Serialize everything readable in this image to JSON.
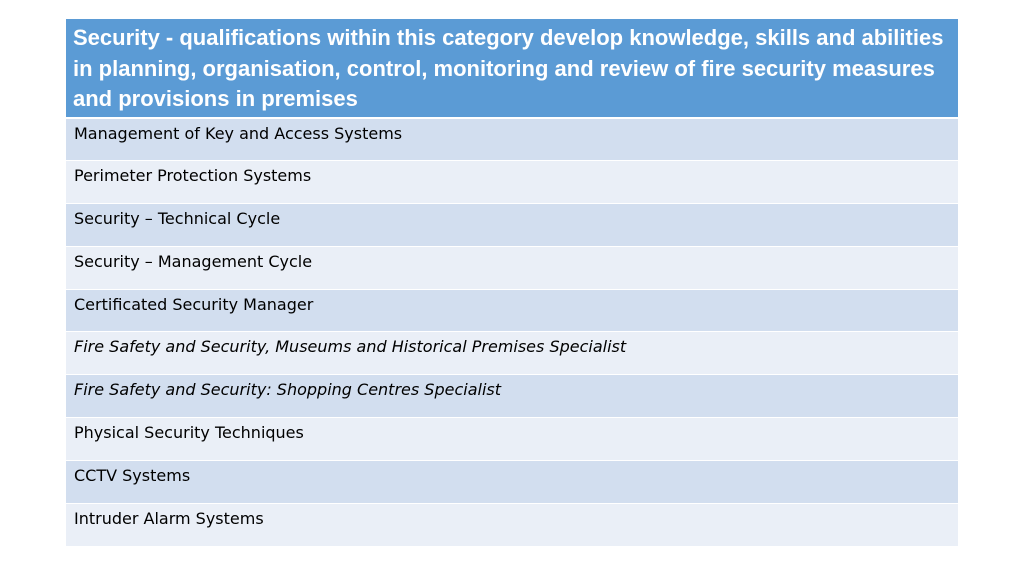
{
  "table": {
    "header": "Security - qualifications within this category develop knowledge, skills and abilities in planning, organisation, control, monitoring and review of fire security measures and provisions in premises",
    "rows": [
      {
        "label": "Management of Key and Access Systems",
        "italic": false
      },
      {
        "label": "Perimeter Protection Systems",
        "italic": false
      },
      {
        "label": "Security – Technical Cycle",
        "italic": false
      },
      {
        "label": "Security – Management Cycle",
        "italic": false
      },
      {
        "label": "Certificated Security Manager",
        "italic": false
      },
      {
        "label": "Fire Safety and Security, Museums and Historical Premises Specialist",
        "italic": true
      },
      {
        "label": "Fire Safety and Security: Shopping Centres Specialist",
        "italic": true
      },
      {
        "label": "Physical Security Techniques",
        "italic": false
      },
      {
        "label": "CCTV Systems",
        "italic": false
      },
      {
        "label": "Intruder Alarm Systems",
        "italic": false
      }
    ]
  },
  "colors": {
    "header_bg": "#5b9bd5",
    "row_odd": "#d2deef",
    "row_even": "#eaeff7"
  }
}
